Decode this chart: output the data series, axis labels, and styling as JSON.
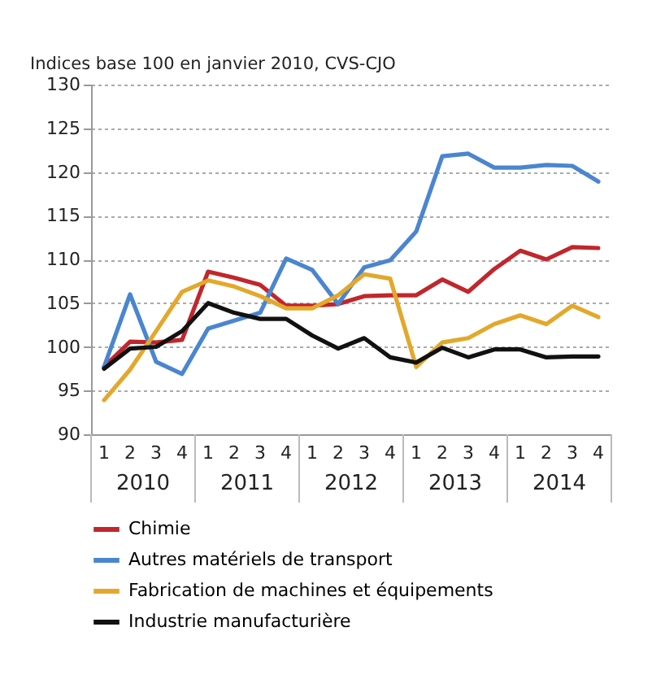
{
  "chart_data": {
    "type": "line",
    "ylabel": "Indices base 100 en janvier 2010, CVS-CJO",
    "categories": [
      "1",
      "2",
      "3",
      "4",
      "1",
      "2",
      "3",
      "4",
      "1",
      "2",
      "3",
      "4",
      "1",
      "2",
      "3",
      "4",
      "1",
      "2",
      "3",
      "4"
    ],
    "annotations": [
      "2010",
      "2011",
      "2012",
      "2013",
      "2014"
    ],
    "series": [
      {
        "name": "Chimie",
        "color": "#c0272d",
        "values": [
          97.7,
          100.6,
          100.5,
          100.8,
          108.6,
          107.9,
          107.1,
          104.7,
          104.7,
          104.9,
          105.8,
          105.9,
          105.9,
          107.7,
          106.3,
          108.9,
          111.0,
          110.0,
          111.4,
          111.3
        ]
      },
      {
        "name": "Autres matériels de transport",
        "color": "#4a86d0",
        "values": [
          97.7,
          106.0,
          98.3,
          96.9,
          102.1,
          103.0,
          103.9,
          110.1,
          108.8,
          104.9,
          109.1,
          109.9,
          113.2,
          121.8,
          122.1,
          120.5,
          120.5,
          120.8,
          120.7,
          118.9
        ]
      },
      {
        "name": "Fabrication de machines et équipements",
        "color": "#e3a82b",
        "values": [
          93.9,
          97.4,
          101.8,
          106.3,
          107.6,
          106.9,
          105.8,
          104.4,
          104.4,
          105.9,
          108.3,
          107.8,
          97.7,
          100.5,
          101.0,
          102.6,
          103.6,
          102.6,
          104.7,
          103.4
        ]
      },
      {
        "name": "Industrie manufacturière",
        "color": "#111111",
        "values": [
          97.5,
          99.8,
          100.0,
          101.8,
          105.0,
          103.9,
          103.2,
          103.2,
          101.3,
          99.8,
          101.0,
          98.8,
          98.2,
          99.9,
          98.8,
          99.7,
          99.7,
          98.8,
          98.9,
          98.9
        ]
      }
    ],
    "ylim": [
      90,
      130
    ],
    "yticks": [
      90,
      95,
      100,
      105,
      110,
      115,
      120,
      125,
      130
    ],
    "grid": "y",
    "legend": "bottom",
    "line_style": "solid"
  }
}
